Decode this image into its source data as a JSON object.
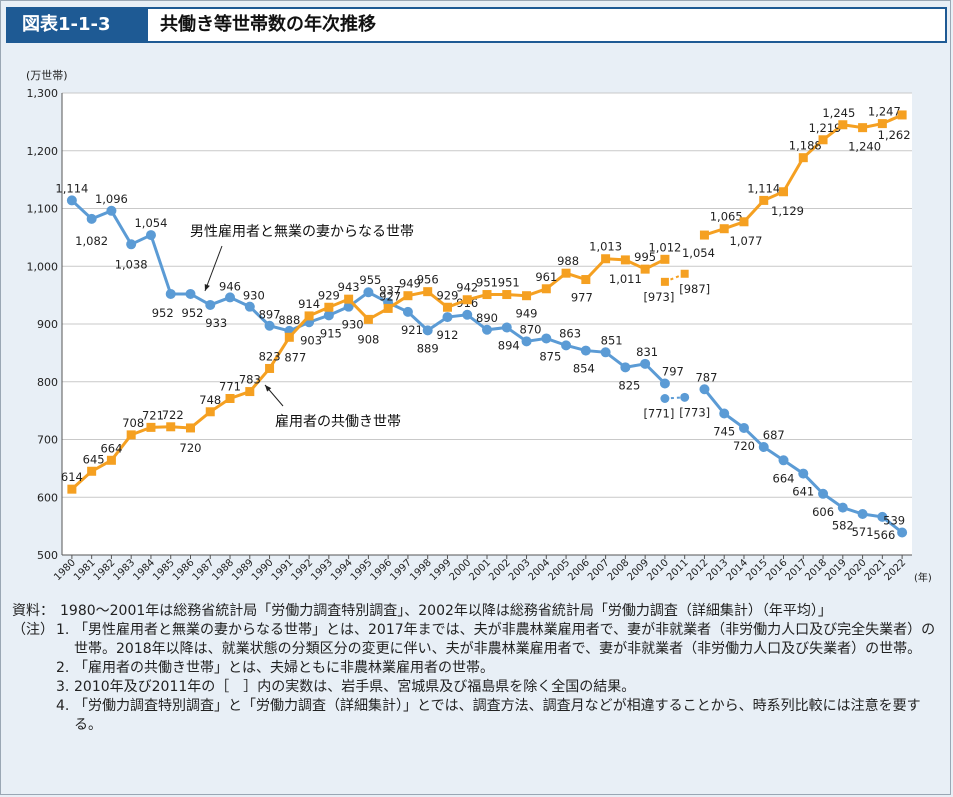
{
  "figure": {
    "number": "図表1-1-3",
    "title": "共働き等世帯数の年次推移"
  },
  "chart_data": {
    "type": "line",
    "unit": "(万世帯)",
    "xunit": "(年)",
    "ylim": [
      500,
      1300
    ],
    "yticks": [
      "500",
      "600",
      "700",
      "800",
      "900",
      "1,000",
      "1,100",
      "1,200",
      "1,300"
    ],
    "categories": [
      "1980",
      "1981",
      "1982",
      "1983",
      "1984",
      "1985",
      "1986",
      "1987",
      "1988",
      "1989",
      "1990",
      "1991",
      "1992",
      "1993",
      "1994",
      "1995",
      "1996",
      "1997",
      "1998",
      "1999",
      "2000",
      "2001",
      "2002",
      "2003",
      "2004",
      "2005",
      "2006",
      "2007",
      "2008",
      "2009",
      "2010",
      "2011",
      "2012",
      "2013",
      "2014",
      "2015",
      "2016",
      "2017",
      "2018",
      "2019",
      "2020",
      "2021",
      "2022"
    ],
    "series": [
      {
        "name": "男性雇用者と無業の妻からなる世帯",
        "color": "#5b9bd5",
        "marker": "circle",
        "values": [
          1114,
          1082,
          1096,
          1038,
          1054,
          952,
          952,
          933,
          946,
          930,
          897,
          888,
          903,
          915,
          930,
          955,
          937,
          921,
          889,
          912,
          916,
          890,
          894,
          870,
          875,
          863,
          854,
          851,
          825,
          831,
          797,
          null,
          787,
          745,
          720,
          687,
          664,
          641,
          606,
          582,
          571,
          566,
          539
        ],
        "labels": [
          "1,114",
          "1,082",
          "1,096",
          "1,038",
          "1,054",
          "952",
          "952",
          "933",
          "946",
          "930",
          "897",
          "888",
          "903",
          "915",
          "930",
          "955",
          "937",
          "921",
          "889",
          "912",
          "916",
          "890",
          "894",
          "870",
          "875",
          "863",
          "854",
          "851",
          "825",
          "831",
          "797",
          "",
          "787",
          "745",
          "720",
          "687",
          "664",
          "641",
          "606",
          "582",
          "571",
          "566",
          "539"
        ],
        "bracket": {
          "years": [
            "2010",
            "2011"
          ],
          "values": [
            771,
            773
          ],
          "labels": [
            "[771]",
            "[773]"
          ]
        }
      },
      {
        "name": "雇用者の共働き世帯",
        "color": "#f5a021",
        "marker": "square",
        "values": [
          614,
          645,
          664,
          708,
          721,
          722,
          720,
          748,
          771,
          783,
          823,
          877,
          914,
          929,
          943,
          908,
          927,
          949,
          956,
          929,
          942,
          951,
          951,
          949,
          961,
          988,
          977,
          1013,
          1011,
          995,
          1012,
          null,
          1054,
          1065,
          1077,
          1114,
          1129,
          1188,
          1219,
          1245,
          1240,
          1247,
          1262
        ],
        "labels": [
          "614",
          "645",
          "664",
          "708",
          "721",
          "722",
          "720",
          "748",
          "771",
          "783",
          "823",
          "877",
          "914",
          "929",
          "943",
          "908",
          "927",
          "949",
          "956",
          "929",
          "942",
          "951",
          "951",
          "949",
          "961",
          "988",
          "977",
          "1,013",
          "1,011",
          "995",
          "1,012",
          "",
          "1,054",
          "1,065",
          "1,077",
          "1,114",
          "1,129",
          "1,188",
          "1,219",
          "1,245",
          "1,240",
          "1,247",
          "1,262"
        ],
        "bracket": {
          "years": [
            "2010",
            "2011"
          ],
          "values": [
            973,
            987
          ],
          "labels": [
            "[973]",
            "[987]"
          ]
        }
      }
    ],
    "annotations": [
      "男性雇用者と無業の妻からなる世帯",
      "雇用者の共働き世帯"
    ]
  },
  "notes": {
    "source_label": "資料：",
    "source_text": "1980～2001年は総務省統計局「労働力調査特別調査」、2002年以降は総務省統計局「労働力調査（詳細集計）（年平均）」",
    "note_label": "（注）",
    "items": [
      {
        "num": "1.",
        "text": "「男性雇用者と無業の妻からなる世帯」とは、2017年までは、夫が非農林業雇用者で、妻が非就業者（非労働力人口及び完全失業者）の世帯。2018年以降は、就業状態の分類区分の変更に伴い、夫が非農林業雇用者で、妻が非就業者（非労働力人口及び失業者）の世帯。"
      },
      {
        "num": "2.",
        "text": "「雇用者の共働き世帯」とは、夫婦ともに非農林業雇用者の世帯。"
      },
      {
        "num": "3.",
        "text": "2010年及び2011年の［　］内の実数は、岩手県、宮城県及び福島県を除く全国の結果。"
      },
      {
        "num": "4.",
        "text": "「労働力調査特別調査」と「労働力調査（詳細集計）」とでは、調査方法、調査月などが相違することから、時系列比較には注意を要する。"
      }
    ]
  }
}
